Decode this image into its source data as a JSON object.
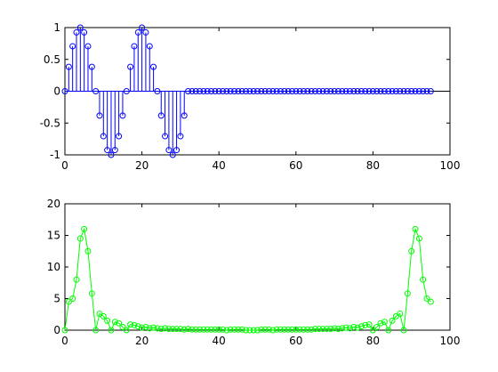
{
  "chart_data": [
    {
      "type": "stem",
      "xlim": [
        0,
        100
      ],
      "ylim": [
        -1,
        1
      ],
      "xticks": [
        0,
        20,
        40,
        60,
        80,
        100
      ],
      "yticks": [
        -1,
        -0.5,
        0,
        0.5,
        1
      ],
      "xtick_labels": [
        "0",
        "20",
        "40",
        "60",
        "80",
        "100"
      ],
      "ytick_labels": [
        "-1",
        "-0.5",
        "0",
        "0.5",
        "1"
      ],
      "grid": false,
      "baseline": 0,
      "color": "#0000ff",
      "marker": "circle",
      "x": [
        0,
        1,
        2,
        3,
        4,
        5,
        6,
        7,
        8,
        9,
        10,
        11,
        12,
        13,
        14,
        15,
        16,
        17,
        18,
        19,
        20,
        21,
        22,
        23,
        24,
        25,
        26,
        27,
        28,
        29,
        30,
        31,
        32,
        33,
        34,
        35,
        36,
        37,
        38,
        39,
        40,
        41,
        42,
        43,
        44,
        45,
        46,
        47,
        48,
        49,
        50,
        51,
        52,
        53,
        54,
        55,
        56,
        57,
        58,
        59,
        60,
        61,
        62,
        63,
        64,
        65,
        66,
        67,
        68,
        69,
        70,
        71,
        72,
        73,
        74,
        75,
        76,
        77,
        78,
        79,
        80,
        81,
        82,
        83,
        84,
        85,
        86,
        87,
        88,
        89,
        90,
        91,
        92,
        93,
        94,
        95
      ],
      "y": [
        0,
        0.383,
        0.707,
        0.924,
        1,
        0.924,
        0.707,
        0.383,
        0,
        -0.383,
        -0.707,
        -0.924,
        -1,
        -0.924,
        -0.707,
        -0.383,
        0,
        0.383,
        0.707,
        0.924,
        1,
        0.924,
        0.707,
        0.383,
        0,
        -0.383,
        -0.707,
        -0.924,
        -1,
        -0.924,
        -0.707,
        -0.383,
        0,
        0,
        0,
        0,
        0,
        0,
        0,
        0,
        0,
        0,
        0,
        0,
        0,
        0,
        0,
        0,
        0,
        0,
        0,
        0,
        0,
        0,
        0,
        0,
        0,
        0,
        0,
        0,
        0,
        0,
        0,
        0,
        0,
        0,
        0,
        0,
        0,
        0,
        0,
        0,
        0,
        0,
        0,
        0,
        0,
        0,
        0,
        0,
        0,
        0,
        0,
        0,
        0,
        0,
        0,
        0,
        0,
        0,
        0,
        0,
        0,
        0,
        0,
        0
      ]
    },
    {
      "type": "line",
      "xlim": [
        0,
        100
      ],
      "ylim": [
        0,
        20
      ],
      "xticks": [
        0,
        20,
        40,
        60,
        80,
        100
      ],
      "yticks": [
        0,
        5,
        10,
        15,
        20
      ],
      "xtick_labels": [
        "0",
        "20",
        "40",
        "60",
        "80",
        "100"
      ],
      "ytick_labels": [
        "0",
        "5",
        "10",
        "15",
        "20"
      ],
      "grid": false,
      "color": "#00ff00",
      "marker": "circle",
      "x": [
        0,
        1,
        2,
        3,
        4,
        5,
        6,
        7,
        8,
        9,
        10,
        11,
        12,
        13,
        14,
        15,
        16,
        17,
        18,
        19,
        20,
        21,
        22,
        23,
        24,
        25,
        26,
        27,
        28,
        29,
        30,
        31,
        32,
        33,
        34,
        35,
        36,
        37,
        38,
        39,
        40,
        41,
        42,
        43,
        44,
        45,
        46,
        47,
        48,
        49,
        50,
        51,
        52,
        53,
        54,
        55,
        56,
        57,
        58,
        59,
        60,
        61,
        62,
        63,
        64,
        65,
        66,
        67,
        68,
        69,
        70,
        71,
        72,
        73,
        74,
        75,
        76,
        77,
        78,
        79,
        80,
        81,
        82,
        83,
        84,
        85,
        86,
        87,
        88,
        89,
        90,
        91,
        92,
        93,
        94,
        95
      ],
      "y": [
        0,
        4.5,
        5,
        8,
        14.5,
        16,
        12.5,
        5.8,
        0,
        2.6,
        2.2,
        1.5,
        0,
        1.3,
        1.1,
        0.5,
        0,
        0.9,
        0.8,
        0.6,
        0.4,
        0.5,
        0.3,
        0.4,
        0.3,
        0.2,
        0.3,
        0.2,
        0.2,
        0.2,
        0.2,
        0.1,
        0.2,
        0.1,
        0.1,
        0.1,
        0.1,
        0.1,
        0.1,
        0.1,
        0.1,
        0.1,
        0,
        0.1,
        0.1,
        0.1,
        0.1,
        0,
        0,
        0,
        0,
        0.1,
        0.1,
        0.1,
        0,
        0.1,
        0.1,
        0.1,
        0.1,
        0.1,
        0.1,
        0.1,
        0.1,
        0.1,
        0.1,
        0.2,
        0.2,
        0.2,
        0.2,
        0.2,
        0.3,
        0.2,
        0.3,
        0.4,
        0.3,
        0.5,
        0.4,
        0.6,
        0.8,
        0.9,
        0,
        0.5,
        1.1,
        1.3,
        0,
        1.5,
        2.2,
        2.6,
        0,
        5.8,
        12.5,
        16,
        14.5,
        8,
        5,
        4.5
      ]
    }
  ]
}
